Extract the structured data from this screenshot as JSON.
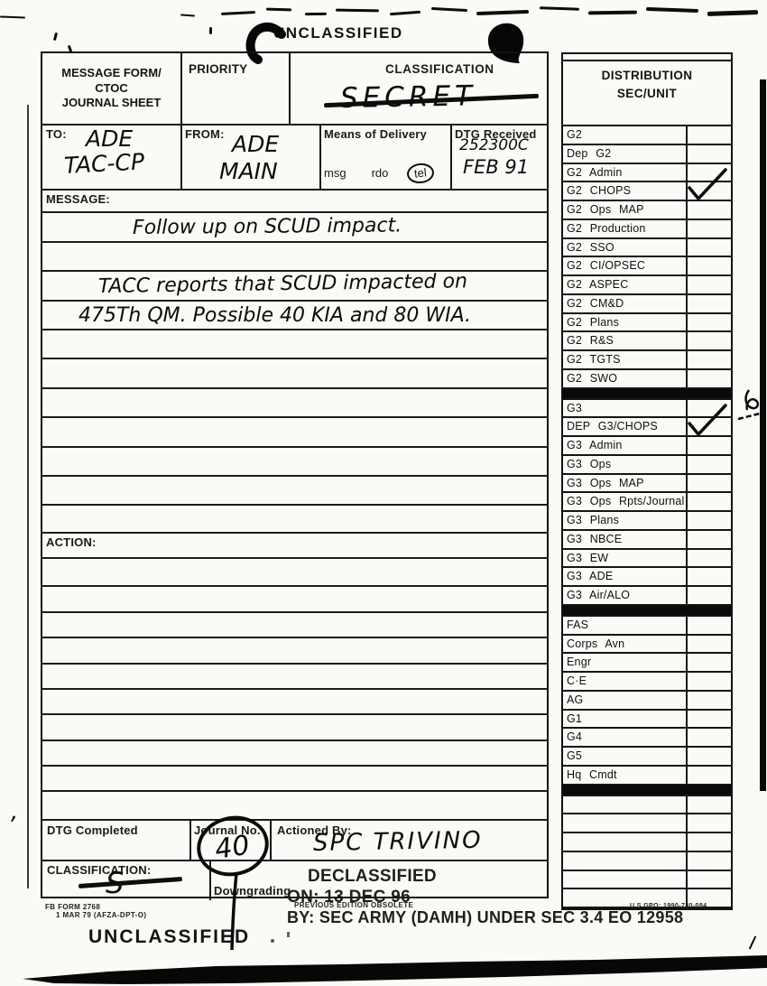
{
  "banners": {
    "top": "UNCLASSIFIED",
    "bottom": "UNCLASSIFIED"
  },
  "header": {
    "title_lines": [
      "MESSAGE FORM/",
      "CTOC",
      "JOURNAL SHEET"
    ],
    "priority_label": "PRIORITY",
    "classification_label": "CLASSIFICATION",
    "classification_value": "SECRET",
    "to_label": "TO:",
    "to_value_line1": "ADE",
    "to_value_line2": "TAC-CP",
    "from_label": "FROM:",
    "from_value_line1": "ADE",
    "from_value_line2": "MAIN",
    "delivery_label": "Means of Delivery",
    "delivery_options": [
      "msg",
      "rdo",
      "tel"
    ],
    "delivery_selected": "tel",
    "dtg_received_label": "DTG Received",
    "dtg_received_line1": "252300C",
    "dtg_received_line2": "FEB 91"
  },
  "message": {
    "label": "MESSAGE:",
    "line1": "Follow up on SCUD impact.",
    "line2": "TACC reports that SCUD impacted on",
    "line3": "475Th QM. Possible 40 KIA and 80 WIA."
  },
  "action": {
    "label": "ACTION:"
  },
  "footer_row": {
    "dtg_completed_label": "DTG Completed",
    "journal_no_label": "Journal No.",
    "journal_no_value": "40",
    "actioned_by_label": "Actioned By:",
    "actioned_by_value": "SPC TRIVINO",
    "classification_label": "CLASSIFICATION:",
    "classification_value": "S",
    "downgrading_label": "Downgrading"
  },
  "stamp": {
    "line1": "DECLASSIFIED",
    "line2": "ON: 13 DEC 96",
    "line3": "BY: SEC ARMY (DAMH) UNDER SEC 3.4 EO 12958"
  },
  "form_footer": {
    "form_number_line1": "FB  FORM  2768",
    "form_number_line2": "1  MAR  79  (AFZA-DPT-O)",
    "previous_edition": "PREVIOUS EDITION OBSOLETE",
    "gpo": "U S GPO: 1990-730-084"
  },
  "distribution": {
    "header_line1": "DISTRIBUTION",
    "header_line2": "SEC/UNIT",
    "rows": [
      {
        "label": "G2",
        "checked": false
      },
      {
        "label": "Dep G2",
        "checked": false
      },
      {
        "label": "G2 Admin",
        "checked": false
      },
      {
        "label": "G2 CHOPS",
        "checked": true
      },
      {
        "label": "G2 Ops MAP",
        "checked": false
      },
      {
        "label": "G2 Production",
        "checked": false
      },
      {
        "label": "G2 SSO",
        "checked": false
      },
      {
        "label": "G2 CI/OPSEC",
        "checked": false
      },
      {
        "label": "G2 ASPEC",
        "checked": false
      },
      {
        "label": "G2 CM&D",
        "checked": false
      },
      {
        "label": "G2 Plans",
        "checked": false
      },
      {
        "label": "G2 R&S",
        "checked": false
      },
      {
        "label": "G2 TGTS",
        "checked": false
      },
      {
        "label": "G2 SWO",
        "checked": false
      },
      {
        "divider": true
      },
      {
        "label": "G3",
        "checked": false
      },
      {
        "label": "DEP G3/CHOPS",
        "checked": true
      },
      {
        "label": "G3 Admin",
        "checked": false
      },
      {
        "label": "G3 Ops",
        "checked": false
      },
      {
        "label": "G3 Ops MAP",
        "checked": false
      },
      {
        "label": "G3 Ops Rpts/Journal",
        "checked": false
      },
      {
        "label": "G3 Plans",
        "checked": false
      },
      {
        "label": "G3 NBCE",
        "checked": false
      },
      {
        "label": "G3 EW",
        "checked": false
      },
      {
        "label": "G3 ADE",
        "checked": false
      },
      {
        "label": "G3 Air/ALO",
        "checked": false
      },
      {
        "divider": true
      },
      {
        "label": "FAS",
        "checked": false
      },
      {
        "label": "Corps Avn",
        "checked": false
      },
      {
        "label": "Engr",
        "checked": false
      },
      {
        "label": "C·E",
        "checked": false
      },
      {
        "label": "AG",
        "checked": false
      },
      {
        "label": "G1",
        "checked": false
      },
      {
        "label": "G4",
        "checked": false
      },
      {
        "label": "G5",
        "checked": false
      },
      {
        "label": "Hq Cmdt",
        "checked": false
      },
      {
        "divider": true
      },
      {
        "label": "",
        "checked": false
      },
      {
        "label": "",
        "checked": false
      },
      {
        "label": "",
        "checked": false
      },
      {
        "label": "",
        "checked": false
      },
      {
        "label": "",
        "checked": false
      },
      {
        "label": "",
        "checked": false
      }
    ]
  }
}
